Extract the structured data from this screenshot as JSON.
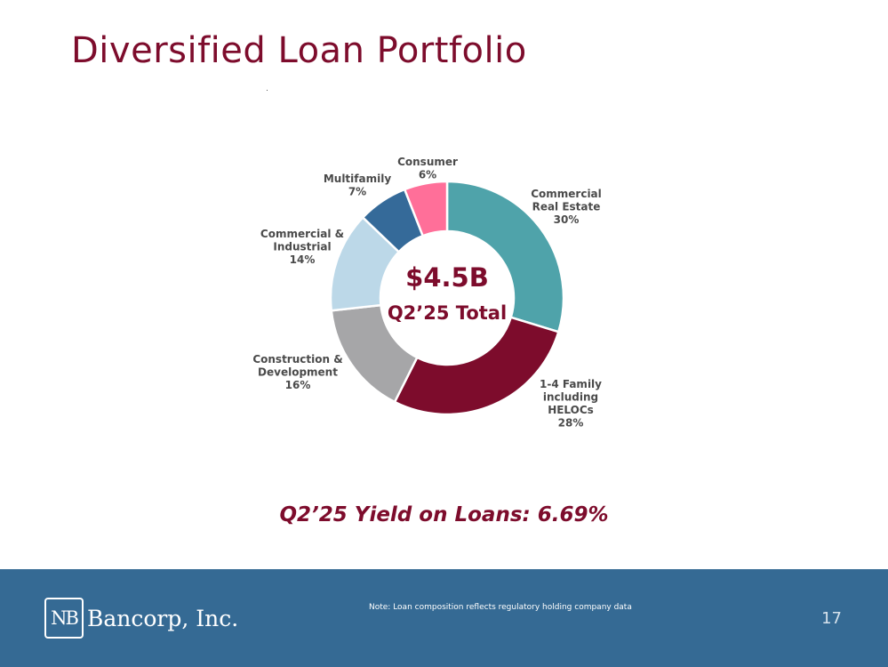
{
  "slide": {
    "title": "Diversified Loan Portfolio",
    "yield_text": "Q2’25 Yield on Loans: 6.69%",
    "note": "Note: Loan composition reflects regulatory holding company data",
    "page_number": "17"
  },
  "logo": {
    "mark": "NB",
    "name": "Bancorp, Inc."
  },
  "chart_data": {
    "type": "pie",
    "center_value": "$4.5B",
    "center_label": "Q2’25 Total",
    "slices": [
      {
        "label": [
          "Commercial",
          "Real Estate"
        ],
        "percent_text": "30%",
        "value": 30,
        "color": "#4fa3aa"
      },
      {
        "label": [
          "1-4 Family",
          "including",
          "HELOCs"
        ],
        "percent_text": "28%",
        "value": 28,
        "color": "#7d0c2c"
      },
      {
        "label": [
          "Construction &",
          "Development"
        ],
        "percent_text": "16%",
        "value": 16,
        "color": "#a6a6a8"
      },
      {
        "label": [
          "Commercial &",
          "Industrial"
        ],
        "percent_text": "14%",
        "value": 14,
        "color": "#bcd8e8"
      },
      {
        "label": [
          "Multifamily"
        ],
        "percent_text": "7%",
        "value": 7,
        "color": "#356a99"
      },
      {
        "label": [
          "Consumer"
        ],
        "percent_text": "6%",
        "value": 6,
        "color": "#ff6f99"
      }
    ]
  }
}
